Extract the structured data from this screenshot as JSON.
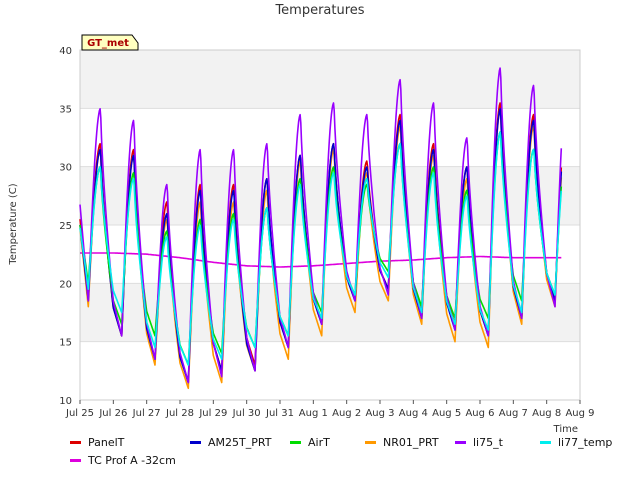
{
  "chart_data": {
    "type": "line",
    "title": "Temperatures",
    "xlabel": "Time",
    "ylabel": "Temperature (C)",
    "station_badge": "GT_met",
    "ylim": [
      10,
      40
    ],
    "xlim": [
      "2024-07-25",
      "2024-08-09"
    ],
    "y_ticks": [
      10,
      15,
      20,
      25,
      30,
      35,
      40
    ],
    "x_ticks": [
      "Jul 25",
      "Jul 26",
      "Jul 27",
      "Jul 28",
      "Jul 29",
      "Jul 30",
      "Jul 31",
      "Aug 1",
      "Aug 2",
      "Aug 3",
      "Aug 4",
      "Aug 5",
      "Aug 6",
      "Aug 7",
      "Aug 8",
      "Aug 9"
    ],
    "grid": true,
    "background_bands": "alternating light gray horizontal bands",
    "legend_position": "bottom",
    "x": [
      "Jul 25",
      "Jul 26",
      "Jul 27",
      "Jul 28",
      "Jul 29",
      "Jul 30",
      "Jul 31",
      "Aug 1",
      "Aug 2",
      "Aug 3",
      "Aug 4",
      "Aug 5",
      "Aug 6",
      "Aug 7",
      "Aug 8"
    ],
    "series": [
      {
        "name": "PanelT",
        "color": "#dd0000",
        "daily_min": [
          19,
          15.5,
          13.5,
          11.5,
          12.5,
          13,
          14.5,
          16.5,
          18.5,
          19.5,
          17.5,
          16.5,
          15.5,
          17,
          18.5
        ],
        "daily_max": [
          32,
          31.5,
          27,
          28.5,
          28.5,
          29,
          31,
          32,
          30.5,
          34.5,
          32,
          30,
          35.5,
          34.5,
          34.5
        ]
      },
      {
        "name": "TC Prof A -32cm",
        "color": "#dd00dd",
        "daily_mean": [
          22.6,
          22.6,
          22.5,
          22.2,
          21.8,
          21.5,
          21.4,
          21.5,
          21.7,
          21.9,
          22.0,
          22.2,
          22.3,
          22.2,
          22.2
        ]
      },
      {
        "name": "AM25T_PRT",
        "color": "#0000cc",
        "daily_min": [
          18.5,
          15.5,
          13.5,
          11.5,
          12.5,
          12.5,
          14.5,
          16.5,
          18.5,
          19.5,
          17,
          16,
          15.5,
          17,
          18.5
        ],
        "daily_max": [
          31.5,
          31,
          26,
          28,
          28,
          29,
          31,
          32,
          30,
          34,
          31.5,
          30,
          35,
          34,
          34
        ]
      },
      {
        "name": "AirT",
        "color": "#00dd00",
        "daily_min": [
          20,
          16.5,
          15.5,
          13,
          14,
          14.5,
          15.5,
          17.5,
          19,
          21,
          18,
          17,
          17,
          18.5,
          19
        ],
        "daily_max": [
          30,
          29.5,
          24.5,
          25.5,
          26,
          26.5,
          29,
          30,
          28.5,
          32,
          30,
          28,
          33,
          31.5,
          32
        ]
      },
      {
        "name": "NR01_PRT",
        "color": "#ff9900",
        "daily_min": [
          18,
          15.5,
          13,
          11,
          11.5,
          12.5,
          13.5,
          15.5,
          17.5,
          18.5,
          16.5,
          15,
          14.5,
          16.5,
          18
        ],
        "daily_max": [
          31.5,
          31,
          25.5,
          27,
          27,
          28,
          30.5,
          31.5,
          29.5,
          33.5,
          31,
          29,
          35,
          33.5,
          33.5
        ]
      },
      {
        "name": "li75_t",
        "color": "#9900ff",
        "daily_min": [
          18.5,
          15.5,
          13.5,
          11.5,
          12,
          12.5,
          14.5,
          16.5,
          18.5,
          19,
          17,
          16,
          15.5,
          17,
          18
        ],
        "daily_max": [
          35,
          34,
          28.5,
          31.5,
          31.5,
          32,
          34.5,
          35.5,
          34.5,
          37.5,
          35.5,
          32.5,
          38.5,
          37,
          37
        ]
      },
      {
        "name": "li77_temp",
        "color": "#00eeee",
        "daily_min": [
          19.5,
          17.5,
          14.5,
          13,
          13.5,
          14.5,
          15.5,
          17,
          19,
          20.5,
          17.5,
          16.5,
          16,
          17.5,
          19
        ],
        "daily_max": [
          30,
          29,
          24,
          25,
          25.5,
          26.5,
          28.5,
          29.5,
          29,
          32,
          29.5,
          27.5,
          33,
          31.5,
          31.5
        ]
      }
    ]
  }
}
